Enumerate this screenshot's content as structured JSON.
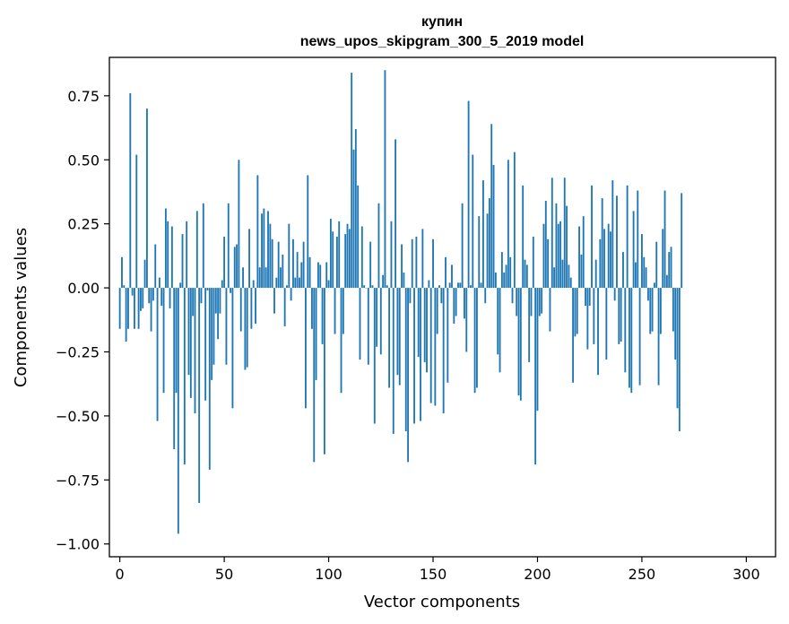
{
  "chart_data": {
    "type": "bar",
    "title": "купин",
    "subtitle": "news_upos_skipgram_300_5_2019 model",
    "xlabel": "Vector components",
    "ylabel": "Components values",
    "xlim": [
      -5,
      314
    ],
    "ylim": [
      -1.05,
      0.9
    ],
    "grid": false,
    "legend": "none",
    "bar_color": "#1f77b4",
    "x_ticks": [
      0,
      50,
      100,
      150,
      200,
      250,
      300
    ],
    "x_tick_labels": [
      "0",
      "50",
      "100",
      "150",
      "200",
      "250",
      "300"
    ],
    "y_ticks": [
      0.75,
      0.5,
      0.25,
      0.0,
      -0.25,
      -0.5,
      -0.75,
      -1.0
    ],
    "y_tick_labels": [
      "0.75",
      "0.50",
      "0.25",
      "0.00",
      "−0.25",
      "−0.50",
      "−0.75",
      "−1.00"
    ],
    "series": [
      {
        "name": "купин",
        "values": [
          -0.16,
          0.12,
          0.01,
          -0.21,
          -0.16,
          0.76,
          -0.03,
          -0.16,
          0.52,
          -0.16,
          -0.09,
          -0.08,
          0.11,
          0.7,
          -0.06,
          -0.17,
          -0.05,
          0.17,
          -0.52,
          0.04,
          -0.07,
          -0.41,
          0.31,
          0.26,
          -0.08,
          0.24,
          -0.63,
          -0.41,
          -0.96,
          0.02,
          0.21,
          -0.69,
          0.26,
          -0.34,
          -0.43,
          -0.11,
          -0.49,
          0.3,
          -0.84,
          -0.06,
          0.33,
          -0.44,
          -0.01,
          -0.71,
          -0.36,
          -0.3,
          -0.1,
          -0.2,
          -0.1,
          0.03,
          0.2,
          -0.3,
          0.33,
          -0.02,
          -0.47,
          0.16,
          0.17,
          0.5,
          -0.17,
          0.08,
          -0.32,
          -0.31,
          0.23,
          -0.16,
          0.03,
          -0.14,
          0.44,
          0.08,
          0.29,
          0.31,
          0.08,
          0.3,
          0.25,
          0.19,
          -0.1,
          0.04,
          0.18,
          0.08,
          0.13,
          -0.15,
          0.01,
          0.25,
          -0.05,
          0.19,
          0.04,
          0.14,
          0.04,
          0.1,
          0.18,
          -0.47,
          0.44,
          0.12,
          -0.16,
          -0.68,
          -0.36,
          0.1,
          0.09,
          -0.22,
          -0.65,
          0.1,
          0.03,
          0.27,
          0.22,
          -0.18,
          0.2,
          0.26,
          -0.41,
          -0.18,
          0.21,
          0.25,
          0.23,
          0.84,
          0.54,
          0.62,
          0.4,
          -0.28,
          0.24,
          0.01,
          0.0,
          -0.3,
          0.18,
          0.01,
          -0.53,
          -0.23,
          0.33,
          -0.26,
          0.05,
          0.85,
          0.01,
          -0.39,
          0.26,
          -0.57,
          0.58,
          -0.34,
          -0.38,
          0.17,
          0.06,
          -0.56,
          -0.68,
          -0.06,
          0.19,
          -0.53,
          0.2,
          -0.27,
          -0.52,
          0.23,
          -0.29,
          -0.33,
          0.03,
          -0.45,
          0.19,
          -0.46,
          -0.18,
          0.01,
          -0.06,
          -0.49,
          0.12,
          -0.37,
          0.02,
          0.09,
          -0.14,
          -0.11,
          0.02,
          0.02,
          0.33,
          -0.12,
          -0.25,
          0.73,
          0.01,
          0.52,
          -0.41,
          -0.39,
          0.28,
          0.02,
          0.42,
          -0.06,
          0.29,
          0.35,
          0.64,
          0.48,
          0.06,
          -0.26,
          -0.33,
          0.14,
          0.06,
          0.09,
          0.5,
          0.12,
          -0.06,
          0.53,
          -0.11,
          -0.42,
          -0.44,
          0.4,
          0.11,
          0.09,
          -0.29,
          -0.11,
          0.2,
          -0.69,
          -0.48,
          -0.11,
          -0.1,
          0.25,
          0.34,
          0.19,
          -0.17,
          0.43,
          0.08,
          0.33,
          0.25,
          0.26,
          0.11,
          0.43,
          0.32,
          0.09,
          0.04,
          -0.37,
          -0.19,
          -0.18,
          0.24,
          0.13,
          0.28,
          -0.07,
          -0.24,
          -0.07,
          0.4,
          -0.22,
          0.11,
          -0.34,
          0.19,
          0.35,
          0.23,
          -0.28,
          0.25,
          0.22,
          0.42,
          -0.05,
          0.36,
          -0.22,
          -0.21,
          0.14,
          -0.33,
          0.4,
          -0.39,
          -0.41,
          0.3,
          0.1,
          0.38,
          -0.38,
          0.21,
          0.12,
          0.08,
          -0.05,
          -0.18,
          -0.17,
          0.02,
          0.18,
          -0.38,
          -0.18,
          0.23,
          0.38,
          0.05,
          0.14,
          0.16,
          -0.17,
          -0.28,
          -0.47,
          -0.56,
          0.37
        ]
      }
    ]
  }
}
